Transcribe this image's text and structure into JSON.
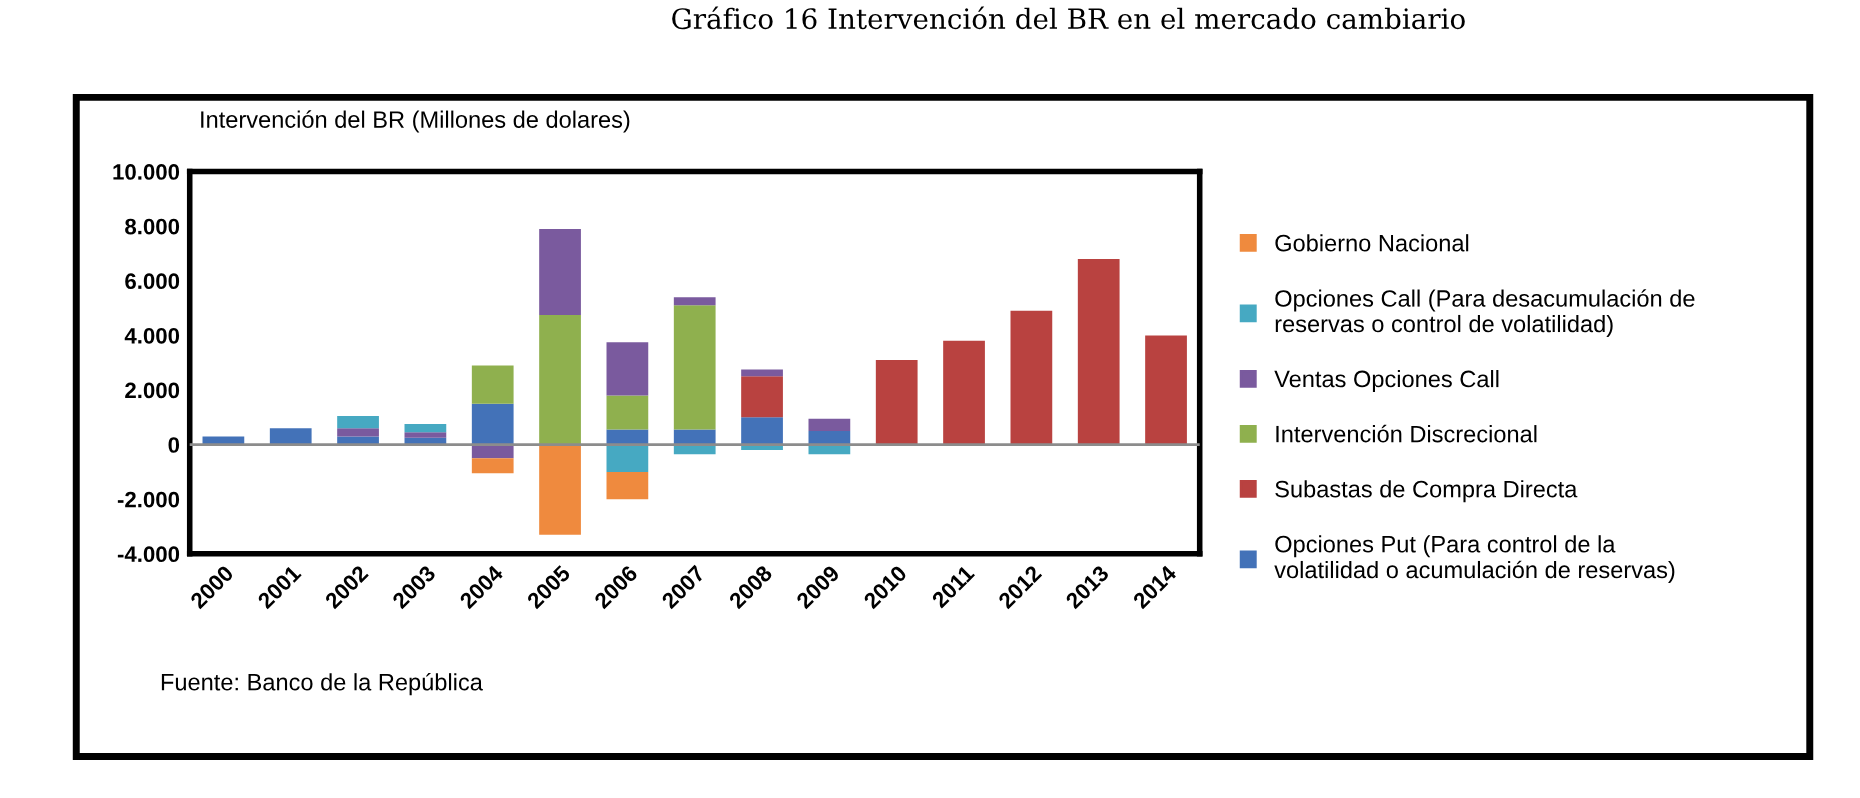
{
  "chart_data": {
    "type": "bar",
    "stacked": true,
    "title": "Gráfico 16 Intervención del BR en el mercado cambiario",
    "ylabel": "Intervención del BR (Millones de dolares)",
    "categories": [
      "2000",
      "2001",
      "2002",
      "2003",
      "2004",
      "2005",
      "2006",
      "2007",
      "2008",
      "2009",
      "2010",
      "2011",
      "2012",
      "2013",
      "2014"
    ],
    "series": [
      {
        "name": "Opciones Put (Para control de la volatilidad o acumulación de reservas)",
        "color": "#4372b8",
        "values": [
          300,
          600,
          300,
          250,
          1500,
          0,
          550,
          550,
          1000,
          500,
          0,
          0,
          0,
          0,
          0
        ]
      },
      {
        "name": "Subastas de Compra Directa",
        "color": "#b94240",
        "values": [
          0,
          0,
          0,
          0,
          0,
          0,
          0,
          0,
          1500,
          0,
          3100,
          3800,
          4900,
          6800,
          4000
        ]
      },
      {
        "name": "Intervención Discrecional",
        "color": "#8fb04e",
        "values": [
          0,
          0,
          0,
          0,
          1400,
          4750,
          1250,
          4550,
          0,
          0,
          0,
          0,
          0,
          0,
          0
        ]
      },
      {
        "name": "Ventas Opciones Call",
        "color": "#7a5a9e",
        "values": [
          0,
          0,
          300,
          200,
          -500,
          3150,
          1950,
          300,
          250,
          450,
          0,
          0,
          0,
          0,
          0
        ]
      },
      {
        "name": "Opciones Call (Para desacumulación de reservas o control de volatilidad)",
        "color": "#46a9c2",
        "values": [
          0,
          0,
          450,
          300,
          0,
          0,
          -1000,
          -350,
          -200,
          -350,
          0,
          0,
          0,
          0,
          0
        ]
      },
      {
        "name": "Gobierno Nacional",
        "color": "#ef8a3e",
        "values": [
          0,
          0,
          0,
          0,
          -550,
          -3300,
          -1000,
          0,
          0,
          0,
          0,
          0,
          0,
          0,
          0
        ]
      }
    ],
    "ylim": [
      -4000,
      10000
    ],
    "yticks": [
      {
        "value": -4000,
        "label": "-4.000"
      },
      {
        "value": -2000,
        "label": "-2.000"
      },
      {
        "value": 0,
        "label": "0"
      },
      {
        "value": 2000,
        "label": "2.000"
      },
      {
        "value": 4000,
        "label": "4.000"
      },
      {
        "value": 6000,
        "label": "6.000"
      },
      {
        "value": 8000,
        "label": "8.000"
      },
      {
        "value": 10000,
        "label": "10.000"
      }
    ],
    "ref_lines": [
      {
        "axis": "y",
        "value": 0,
        "color": "#8c8c8c"
      }
    ],
    "legend": "right",
    "annotations": [
      "Fuente: Banco de la República"
    ]
  }
}
